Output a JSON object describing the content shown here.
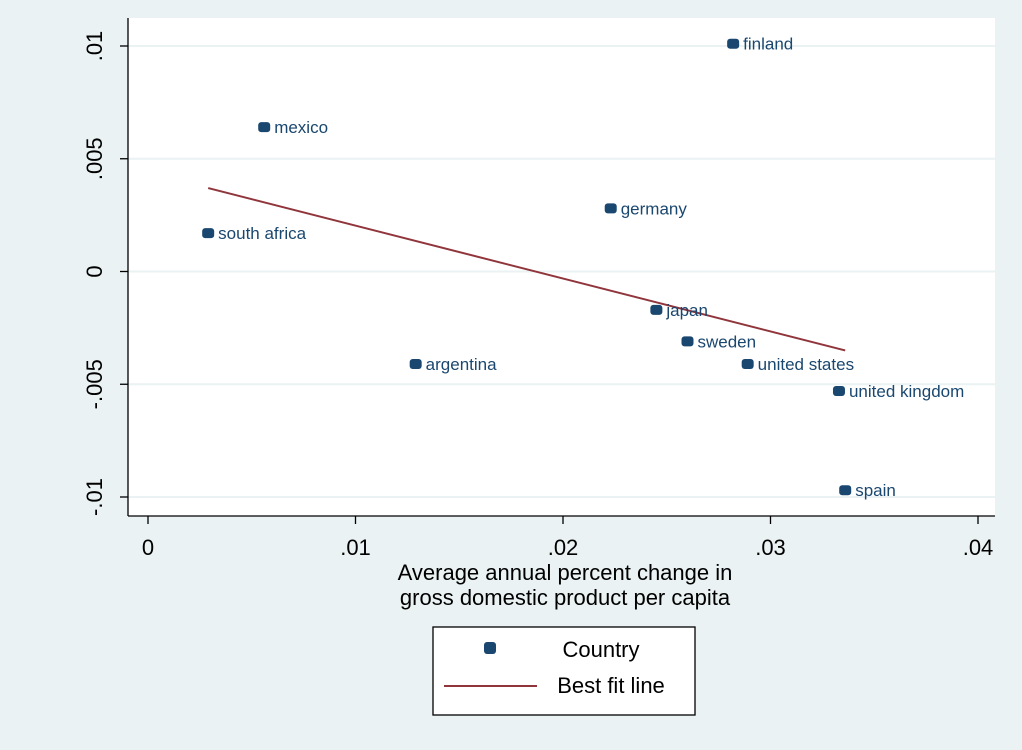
{
  "chart_data": {
    "type": "scatter",
    "xlabel_lines": [
      "Average annual percent change in",
      "gross domestic product per capita"
    ],
    "ylabel": "",
    "xlim": [
      0,
      0.04
    ],
    "ylim": [
      -0.01,
      0.01
    ],
    "x_ticks": [
      0,
      0.01,
      0.02,
      0.03,
      0.04
    ],
    "x_tick_labels": [
      "0",
      ".01",
      ".02",
      ".03",
      ".04"
    ],
    "y_ticks": [
      -0.01,
      -0.005,
      0,
      0.005,
      0.01
    ],
    "y_tick_labels": [
      "-.01",
      "-.005",
      "0",
      ".005",
      ".01"
    ],
    "grid": "horizontal",
    "legend_position": "bottom-center",
    "colors": {
      "background": "#eaf2f3",
      "plot_background": "#ffffff",
      "marker": "#1a476f",
      "fit_line": "#90353b",
      "label": "#1a476f"
    },
    "series": [
      {
        "name": "Country",
        "kind": "scatter",
        "points": [
          {
            "label": "finland",
            "x": 0.0282,
            "y": 0.0101
          },
          {
            "label": "mexico",
            "x": 0.0056,
            "y": 0.0064
          },
          {
            "label": "germany",
            "x": 0.0223,
            "y": 0.0028
          },
          {
            "label": "south africa",
            "x": 0.0029,
            "y": 0.0017
          },
          {
            "label": "japan",
            "x": 0.0245,
            "y": -0.0017
          },
          {
            "label": "sweden",
            "x": 0.026,
            "y": -0.0031
          },
          {
            "label": "argentina",
            "x": 0.0129,
            "y": -0.0041
          },
          {
            "label": "united states",
            "x": 0.0289,
            "y": -0.0041
          },
          {
            "label": "united kingdom",
            "x": 0.0333,
            "y": -0.0053
          },
          {
            "label": "spain",
            "x": 0.0336,
            "y": -0.0097
          }
        ]
      },
      {
        "name": "Best fit line",
        "kind": "line",
        "points": [
          {
            "x": 0.0029,
            "y": 0.0037
          },
          {
            "x": 0.0336,
            "y": -0.0035
          }
        ]
      }
    ]
  }
}
